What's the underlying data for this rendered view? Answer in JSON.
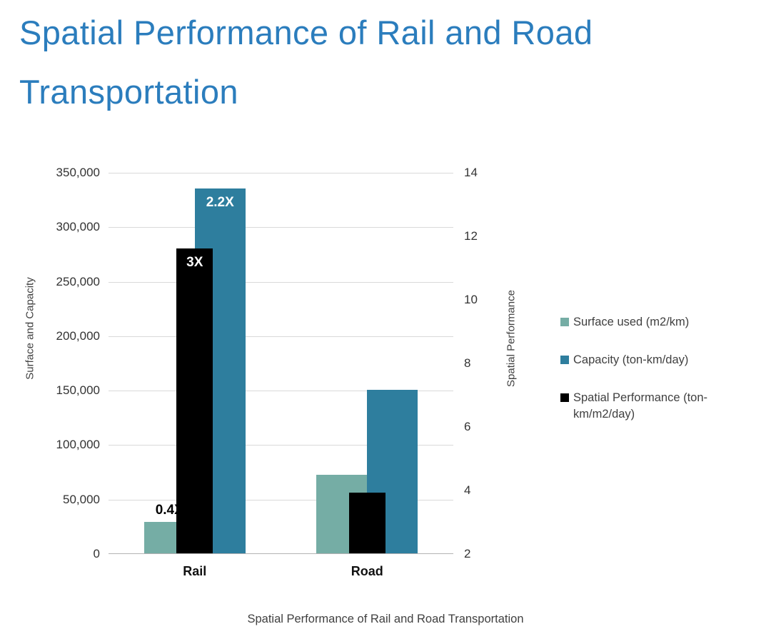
{
  "page": {
    "title": "Spatial Performance of Rail and Road Transportation",
    "title_lines": [
      "Spatial Performance of Rail and Road",
      "Transportation"
    ],
    "title_color": "#2b7dbd",
    "caption": "Spatial Performance of Rail and Road Transportation"
  },
  "chart_data": {
    "type": "bar",
    "title": "Spatial Performance of Rail and Road Transportation",
    "categories": [
      "Rail",
      "Road"
    ],
    "series": [
      {
        "name": "Surface used (m2/km)",
        "axis": "left",
        "color": "#75ada5",
        "values": [
          29000,
          72000
        ],
        "bar_labels": [
          "0.4X",
          ""
        ],
        "label_style": "above"
      },
      {
        "name": "Capacity (ton-km/day)",
        "axis": "left",
        "color": "#2e7e9e",
        "values": [
          335000,
          150000
        ],
        "bar_labels": [
          "2.2X",
          ""
        ],
        "label_style": "inside"
      },
      {
        "name": "Spatial Performance (ton-km/m2/day)",
        "axis": "right",
        "color": "#000000",
        "values": [
          11.6,
          3.9
        ],
        "bar_labels": [
          "3X",
          ""
        ],
        "label_style": "inside"
      }
    ],
    "left_axis": {
      "title": "Surface and Capacity",
      "min": 0,
      "max": 350000,
      "step": 50000,
      "tick_labels": [
        "0",
        "50,000",
        "100,000",
        "150,000",
        "200,000",
        "250,000",
        "300,000",
        "350,000"
      ]
    },
    "right_axis": {
      "title": "Spatial Performance",
      "min": 2,
      "max": 14,
      "step": 2,
      "tick_labels": [
        "2",
        "4",
        "6",
        "8",
        "10",
        "12",
        "14"
      ]
    },
    "grid": true,
    "legend_position": "right"
  }
}
